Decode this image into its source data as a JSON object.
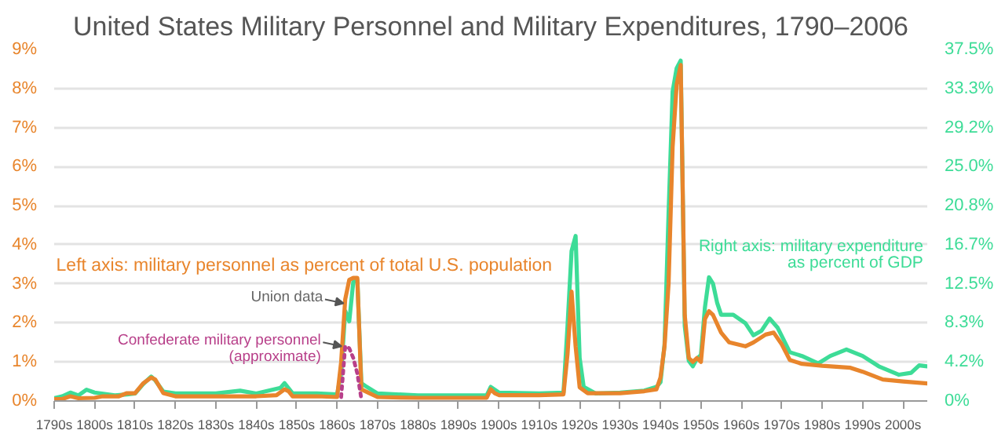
{
  "chart_data": {
    "type": "line",
    "title": "United States Military Personnel and Military Expenditures, 1790–2006",
    "xlim": [
      1790,
      2006
    ],
    "xticks": [
      {
        "value": 1790,
        "label": "1790s"
      },
      {
        "value": 1800,
        "label": "1800s"
      },
      {
        "value": 1810,
        "label": "1810s"
      },
      {
        "value": 1820,
        "label": "1820s"
      },
      {
        "value": 1830,
        "label": "1830s"
      },
      {
        "value": 1840,
        "label": "1840s"
      },
      {
        "value": 1850,
        "label": "1850s"
      },
      {
        "value": 1860,
        "label": "1860s"
      },
      {
        "value": 1870,
        "label": "1870s"
      },
      {
        "value": 1880,
        "label": "1880s"
      },
      {
        "value": 1890,
        "label": "1890s"
      },
      {
        "value": 1900,
        "label": "1900s"
      },
      {
        "value": 1910,
        "label": "1910s"
      },
      {
        "value": 1920,
        "label": "1920s"
      },
      {
        "value": 1930,
        "label": "1930s"
      },
      {
        "value": 1940,
        "label": "1940s"
      },
      {
        "value": 1950,
        "label": "1950s"
      },
      {
        "value": 1960,
        "label": "1960s"
      },
      {
        "value": 1970,
        "label": "1970s"
      },
      {
        "value": 1980,
        "label": "1980s"
      },
      {
        "value": 1990,
        "label": "1990s"
      },
      {
        "value": 2000,
        "label": "2000s"
      }
    ],
    "ylim": [
      0,
      9
    ],
    "yticks": [
      {
        "value": 0,
        "label": "0%"
      },
      {
        "value": 1,
        "label": "1%"
      },
      {
        "value": 2,
        "label": "2%"
      },
      {
        "value": 3,
        "label": "3%"
      },
      {
        "value": 4,
        "label": "4%"
      },
      {
        "value": 5,
        "label": "5%"
      },
      {
        "value": 6,
        "label": "6%"
      },
      {
        "value": 7,
        "label": "7%"
      },
      {
        "value": 8,
        "label": "8%"
      },
      {
        "value": 9,
        "label": "9%"
      }
    ],
    "y2lim": [
      0,
      37.5
    ],
    "y2ticks": [
      {
        "value": 0,
        "label": "0%"
      },
      {
        "value": 4.1667,
        "label": "4.2%"
      },
      {
        "value": 8.3333,
        "label": "8.3%"
      },
      {
        "value": 12.5,
        "label": "12.5%"
      },
      {
        "value": 16.6667,
        "label": "16.7%"
      },
      {
        "value": 20.8333,
        "label": "20.8%"
      },
      {
        "value": 25,
        "label": "25.0%"
      },
      {
        "value": 29.1667,
        "label": "29.2%"
      },
      {
        "value": 33.3333,
        "label": "33.3%"
      },
      {
        "value": 37.5,
        "label": "37.5%"
      }
    ],
    "grid": "y",
    "marker": "none",
    "series": [
      {
        "color": "#e8852c",
        "x": [
          1790,
          1792,
          1794,
          1796,
          1800,
          1802,
          1806,
          1808,
          1810,
          1812,
          1814,
          1815,
          1817,
          1820,
          1830,
          1840,
          1845,
          1847,
          1848,
          1849,
          1855,
          1860,
          1861,
          1862,
          1863,
          1864,
          1865,
          1866,
          1868,
          1870,
          1880,
          1890,
          1897,
          1898,
          1899,
          1900,
          1910,
          1916,
          1917,
          1918,
          1919,
          1920,
          1922,
          1930,
          1936,
          1939,
          1940,
          1941,
          1942,
          1943,
          1944,
          1945,
          1946,
          1947,
          1948,
          1949,
          1950,
          1951,
          1952,
          1953,
          1955,
          1957,
          1959,
          1961,
          1963,
          1966,
          1968,
          1970,
          1972,
          1975,
          1980,
          1987,
          1990,
          1995,
          2000,
          2006
        ],
        "values": [
          0.05,
          0.05,
          0.12,
          0.07,
          0.08,
          0.12,
          0.12,
          0.2,
          0.2,
          0.45,
          0.6,
          0.55,
          0.2,
          0.12,
          0.12,
          0.12,
          0.15,
          0.3,
          0.25,
          0.12,
          0.12,
          0.1,
          1.0,
          2.6,
          3.1,
          3.15,
          3.15,
          0.3,
          0.2,
          0.1,
          0.08,
          0.08,
          0.08,
          0.3,
          0.2,
          0.15,
          0.15,
          0.17,
          1.2,
          2.8,
          1.4,
          0.35,
          0.2,
          0.2,
          0.25,
          0.3,
          0.6,
          1.4,
          3.0,
          6.5,
          8.1,
          8.6,
          2.2,
          1.1,
          1.0,
          1.1,
          1.0,
          2.1,
          2.3,
          2.2,
          1.75,
          1.5,
          1.45,
          1.4,
          1.5,
          1.7,
          1.75,
          1.45,
          1.05,
          0.95,
          0.9,
          0.85,
          0.75,
          0.55,
          0.5,
          0.45
        ]
      },
      {
        "color": "#3ddc97",
        "axis": "y2",
        "x": [
          1790,
          1792,
          1794,
          1796,
          1798,
          1800,
          1805,
          1808,
          1810,
          1812,
          1814,
          1815,
          1817,
          1820,
          1830,
          1836,
          1840,
          1846,
          1847,
          1849,
          1855,
          1860,
          1861,
          1862,
          1863,
          1864,
          1865,
          1866,
          1867,
          1870,
          1880,
          1890,
          1897,
          1898,
          1899,
          1900,
          1910,
          1916,
          1917,
          1918,
          1919,
          1920,
          1921,
          1924,
          1930,
          1936,
          1939,
          1940,
          1941,
          1942,
          1943,
          1944,
          1945,
          1946,
          1947,
          1948,
          1949,
          1950,
          1951,
          1952,
          1953,
          1954,
          1955,
          1958,
          1961,
          1963,
          1965,
          1967,
          1969,
          1972,
          1975,
          1979,
          1982,
          1986,
          1990,
          1994,
          1999,
          2002,
          2004,
          2006
        ],
        "values": [
          0.3,
          0.5,
          0.9,
          0.6,
          1.2,
          0.9,
          0.6,
          0.7,
          0.8,
          1.8,
          2.6,
          2.2,
          1.0,
          0.8,
          0.8,
          1.1,
          0.8,
          1.4,
          1.9,
          0.8,
          0.8,
          0.7,
          3.0,
          9.6,
          8.5,
          12.7,
          12.9,
          1.9,
          1.6,
          0.8,
          0.6,
          0.6,
          0.6,
          1.5,
          1.2,
          0.9,
          0.8,
          0.9,
          8.0,
          16.0,
          17.6,
          4.6,
          1.5,
          0.8,
          0.9,
          1.1,
          1.5,
          2.0,
          6.0,
          20.0,
          33.0,
          35.5,
          36.3,
          8.0,
          4.3,
          3.7,
          4.5,
          4.9,
          10.0,
          13.2,
          12.5,
          10.5,
          9.2,
          9.2,
          8.3,
          7.0,
          7.5,
          8.8,
          7.8,
          5.2,
          4.8,
          4.0,
          4.8,
          5.5,
          4.8,
          3.7,
          2.8,
          3.0,
          3.8,
          3.7
        ]
      },
      {
        "color": "#b8408a",
        "line_style": "dotted",
        "x": [
          1861,
          1862,
          1863,
          1864,
          1865,
          1866
        ],
        "values": [
          0.1,
          1.4,
          1.35,
          1.1,
          0.7,
          0.05
        ]
      }
    ],
    "annotations": [
      "Left axis: military personnel as percent of total U.S. population",
      {
        "text": "Union data",
        "x": 1862,
        "y": 2.5
      },
      {
        "text": "Confederate military personnel\n(approximate)",
        "x": 1861.5,
        "y": 1.4
      },
      "Right axis: military expenditure\nas percent of GDP"
    ]
  }
}
